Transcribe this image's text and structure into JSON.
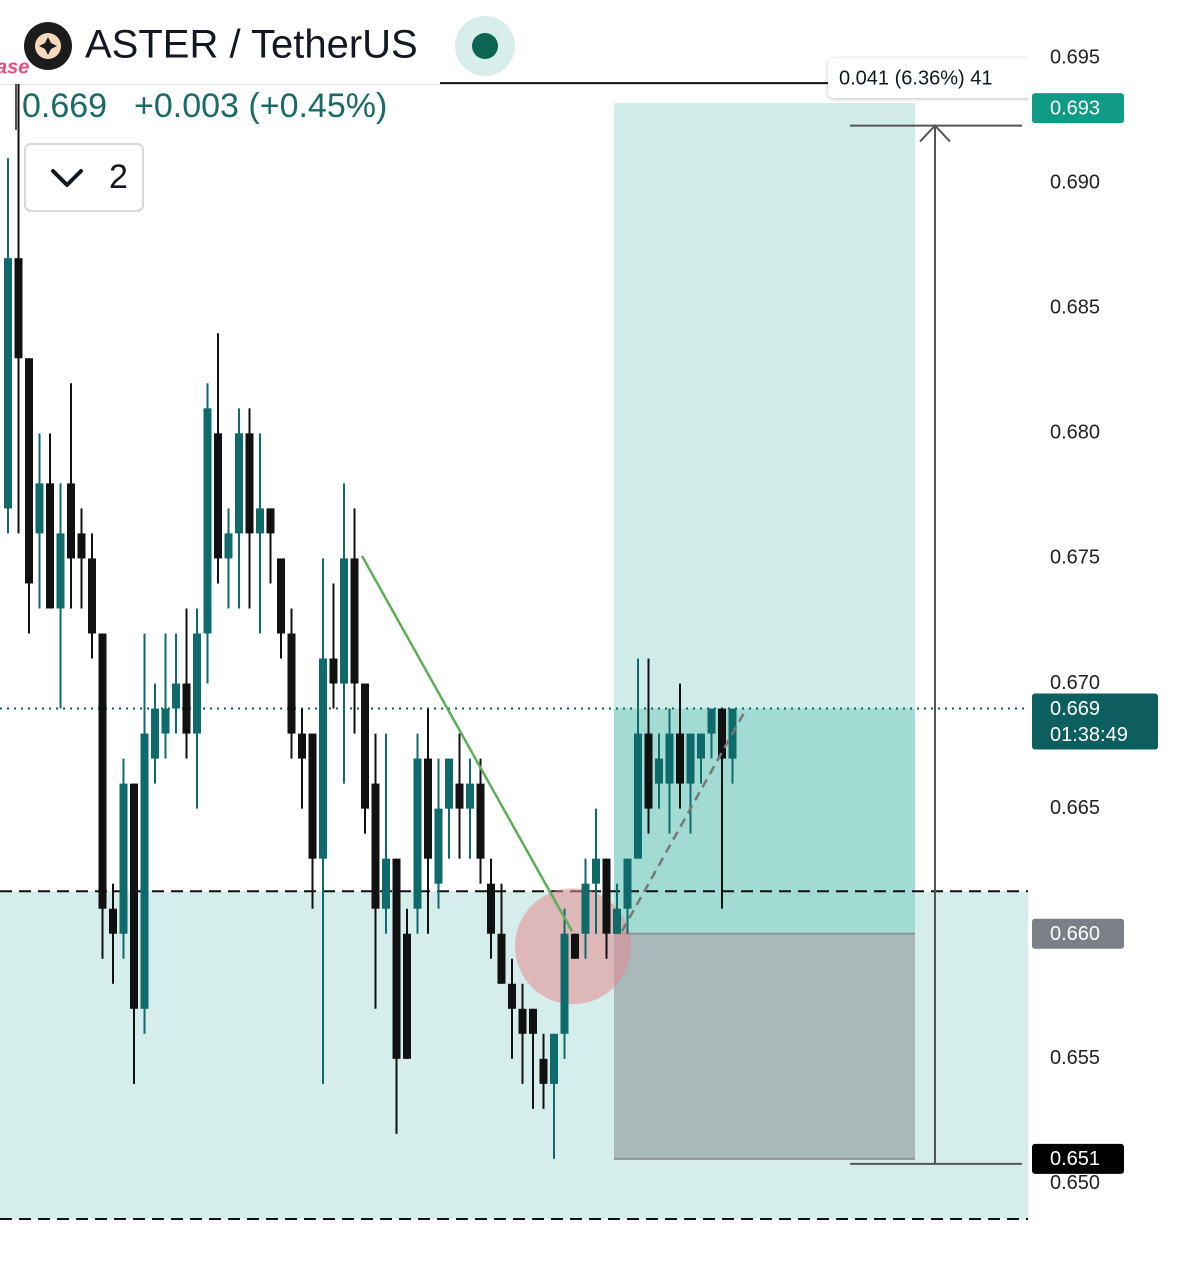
{
  "chart_data": {
    "type": "candlestick",
    "title": "ASTER / TetherUS",
    "partial_label": "ase",
    "last_price": "0.669",
    "change": "+0.003 (+0.45%)",
    "indicator_count": "2",
    "up_color": "#0f6b6b",
    "down_color": "#111111",
    "open": [
      0.677,
      0.687,
      0.683,
      0.676,
      0.678,
      0.673,
      0.678,
      0.676,
      0.675,
      0.672,
      0.661,
      0.66,
      0.666,
      0.657,
      0.667,
      0.668,
      0.669,
      0.67,
      0.668,
      0.672,
      0.68,
      0.675,
      0.676,
      0.68,
      0.676,
      0.677,
      0.675,
      0.672,
      0.668,
      0.668,
      0.663,
      0.671,
      0.67,
      0.675,
      0.67,
      0.666,
      0.661,
      0.663,
      0.66,
      0.661,
      0.667,
      0.662,
      0.665,
      0.666,
      0.665,
      0.666,
      0.662,
      0.66,
      0.658,
      0.657,
      0.657,
      0.655,
      0.654,
      0.656,
      0.66,
      0.66,
      0.662,
      0.663,
      0.66,
      0.661,
      0.663,
      0.668,
      0.666,
      0.666,
      0.668,
      0.666,
      0.667,
      0.668,
      0.669,
      0.667
    ],
    "high": [
      0.691,
      0.696,
      0.683,
      0.68,
      0.68,
      0.678,
      0.682,
      0.677,
      0.676,
      0.672,
      0.662,
      0.667,
      0.666,
      0.672,
      0.67,
      0.672,
      0.672,
      0.673,
      0.673,
      0.682,
      0.684,
      0.677,
      0.681,
      0.681,
      0.68,
      0.677,
      0.675,
      0.673,
      0.669,
      0.668,
      0.675,
      0.674,
      0.678,
      0.677,
      0.67,
      0.668,
      0.668,
      0.663,
      0.661,
      0.668,
      0.669,
      0.667,
      0.667,
      0.668,
      0.667,
      0.667,
      0.663,
      0.662,
      0.659,
      0.658,
      0.657,
      0.656,
      0.656,
      0.661,
      0.66,
      0.663,
      0.665,
      0.663,
      0.662,
      0.663,
      0.671,
      0.671,
      0.668,
      0.669,
      0.67,
      0.668,
      0.668,
      0.669,
      0.669,
      0.669
    ],
    "low": [
      0.676,
      0.676,
      0.672,
      0.673,
      0.673,
      0.669,
      0.673,
      0.673,
      0.671,
      0.659,
      0.658,
      0.659,
      0.654,
      0.656,
      0.666,
      0.667,
      0.668,
      0.667,
      0.665,
      0.67,
      0.674,
      0.673,
      0.673,
      0.673,
      0.672,
      0.674,
      0.671,
      0.667,
      0.665,
      0.661,
      0.654,
      0.669,
      0.666,
      0.668,
      0.664,
      0.657,
      0.66,
      0.652,
      0.655,
      0.66,
      0.66,
      0.661,
      0.663,
      0.663,
      0.663,
      0.662,
      0.659,
      0.658,
      0.655,
      0.654,
      0.653,
      0.653,
      0.651,
      0.655,
      0.659,
      0.659,
      0.66,
      0.659,
      0.66,
      0.66,
      0.663,
      0.664,
      0.665,
      0.664,
      0.665,
      0.664,
      0.666,
      0.667,
      0.661,
      0.666
    ],
    "close": [
      0.687,
      0.683,
      0.674,
      0.678,
      0.673,
      0.676,
      0.675,
      0.675,
      0.672,
      0.661,
      0.66,
      0.666,
      0.657,
      0.668,
      0.669,
      0.669,
      0.67,
      0.668,
      0.672,
      0.681,
      0.675,
      0.676,
      0.68,
      0.676,
      0.677,
      0.676,
      0.672,
      0.668,
      0.667,
      0.663,
      0.671,
      0.67,
      0.675,
      0.67,
      0.665,
      0.661,
      0.663,
      0.655,
      0.655,
      0.667,
      0.663,
      0.665,
      0.667,
      0.665,
      0.666,
      0.663,
      0.66,
      0.658,
      0.657,
      0.656,
      0.656,
      0.654,
      0.656,
      0.66,
      0.659,
      0.662,
      0.663,
      0.66,
      0.661,
      0.663,
      0.668,
      0.665,
      0.667,
      0.668,
      0.666,
      0.668,
      0.668,
      0.669,
      0.667,
      0.669
    ],
    "ylim": [
      0.64616,
      0.69732
    ],
    "yticks": [
      0.695,
      {
        "value": 0.69,
        "label": "0.690"
      },
      0.685,
      {
        "value": 0.68,
        "label": "0.680"
      },
      0.675,
      {
        "value": 0.67,
        "label": "0.670"
      },
      0.665,
      {
        "value": 0.66,
        "label": "0.660"
      },
      0.655,
      {
        "value": 0.65,
        "label": "0.650"
      }
    ],
    "price_tags": [
      {
        "value": 0.693,
        "label": "0.693",
        "bg": "#109b86",
        "fg": "#ffffff"
      },
      {
        "value": 0.669,
        "label": "0.669",
        "sublabel": "01:38:49",
        "bg": "#0d5e5e",
        "fg": "#ffffff"
      },
      {
        "value": 0.66,
        "label": "0.660",
        "bg": "#7b7f88",
        "fg": "#ffffff"
      },
      {
        "value": 0.651,
        "label": "0.651",
        "bg": "#000000",
        "fg": "#ffffff"
      }
    ],
    "current_price": 0.669,
    "top_line": 0.694,
    "support_zone": [
      0.6486,
      0.6617
    ],
    "position": {
      "target": 0.6932,
      "entry": 0.66,
      "stop": 0.651
    },
    "trend_line": [
      0.6751,
      0.6601
    ],
    "projection_line": [
      0.6601,
      0.6689
    ],
    "highlight": 0.6595,
    "measure": {
      "low": 0.6508,
      "high": 0.6923,
      "label": "0.041 (6.36%) 41"
    }
  }
}
